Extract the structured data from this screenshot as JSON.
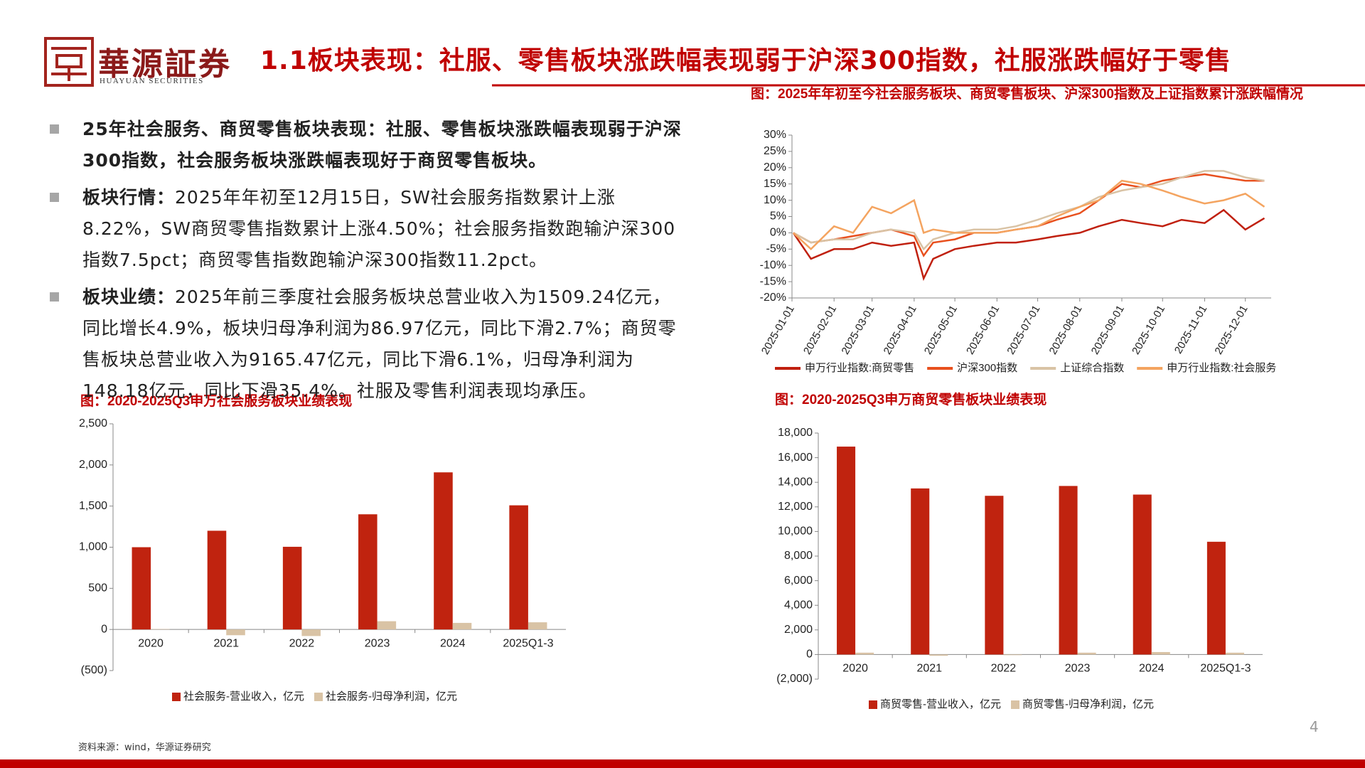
{
  "header": {
    "logo": "華源証券",
    "logo_en": "HUAYUAN SECURITIES",
    "title": "1.1板块表现：社服、零售板块涨跌幅表现弱于沪深300指数，社服涨跌幅好于零售"
  },
  "bullets": [
    {
      "lead": "25年社会服务、商贸零售板块表现：社服、零售板块涨跌幅表现弱于沪深300指数，社会服务板块涨跌幅表现好于商贸零售板块。"
    },
    {
      "lead": "板块行情：",
      "text": "2025年年初至12月15日，SW社会服务指数累计上涨8.22%，SW商贸零售指数累计上涨4.50%；社会服务指数跑输沪深300指数7.5pct；商贸零售指数跑输沪深300指数11.2pct。"
    },
    {
      "lead": "板块业绩：",
      "text": "2025年前三季度社会服务板块总营业收入为1509.24亿元，同比增长4.9%，板块归母净利润为86.97亿元，同比下滑2.7%；商贸零售板块总营业收入为9165.47亿元，同比下滑6.1%，归母净利润为148.18亿元，同比下滑35.4%。社服及零售利润表现均承压。"
    }
  ],
  "source": "资料来源：wind，华源证券研究",
  "page_number": "4",
  "chart_data": [
    {
      "type": "line",
      "title": "图：2025年年初至今社会服务板块、商贸零售板块、沪深300指数及上证指数累计涨跌幅情况",
      "x": [
        "2025-01-02",
        "2025-01-15",
        "2025-02-01",
        "2025-02-15",
        "2025-03-01",
        "2025-03-15",
        "2025-04-01",
        "2025-04-08",
        "2025-04-15",
        "2025-05-01",
        "2025-05-15",
        "2025-06-01",
        "2025-06-15",
        "2025-07-01",
        "2025-07-15",
        "2025-08-01",
        "2025-08-15",
        "2025-09-01",
        "2025-09-15",
        "2025-10-01",
        "2025-10-15",
        "2025-11-01",
        "2025-11-15",
        "2025-12-01",
        "2025-12-15"
      ],
      "series": [
        {
          "name": "申万行业指数:商贸零售",
          "color": "#c0200f",
          "values": [
            0,
            -8,
            -5,
            -5,
            -3,
            -4,
            -3,
            -14,
            -8,
            -5,
            -4,
            -3,
            -3,
            -2,
            -1,
            0,
            2,
            4,
            3,
            2,
            4,
            3,
            7,
            1,
            4.5
          ]
        },
        {
          "name": "沪深300指数",
          "color": "#e8501e",
          "values": [
            0,
            -3,
            -2,
            -1,
            0,
            1,
            -1,
            -7,
            -3,
            -2,
            0,
            0,
            1,
            2,
            4,
            6,
            10,
            15,
            14,
            16,
            17,
            18,
            17,
            16,
            16
          ]
        },
        {
          "name": "上证综合指数",
          "color": "#d9c3a5",
          "values": [
            0,
            -3,
            -2,
            -2,
            0,
            1,
            0,
            -5,
            -2,
            0,
            1,
            1,
            2,
            4,
            6,
            8,
            11,
            13,
            14,
            15,
            17,
            19,
            19,
            17,
            16
          ]
        },
        {
          "name": "申万行业指数:社会服务",
          "color": "#f4a460",
          "values": [
            0,
            -5,
            2,
            0,
            8,
            6,
            10,
            0,
            1,
            0,
            0,
            0,
            1,
            2,
            5,
            8,
            10,
            16,
            15,
            13,
            11,
            9,
            10,
            12,
            8
          ]
        }
      ],
      "xlim": [
        "2025-01-01",
        "2025-12-20"
      ],
      "xticks": [
        "2025-01-01",
        "2025-02-01",
        "2025-03-01",
        "2025-04-01",
        "2025-05-01",
        "2025-06-01",
        "2025-07-01",
        "2025-08-01",
        "2025-09-01",
        "2025-10-01",
        "2025-11-01",
        "2025-12-01"
      ],
      "ylim": [
        -20,
        30
      ],
      "yticks": [
        {
          "value": -20,
          "label": "-20%"
        },
        {
          "value": -15,
          "label": "-15%"
        },
        {
          "value": -10,
          "label": "-10%"
        },
        {
          "value": -5,
          "label": "-5%"
        },
        {
          "value": 0,
          "label": "0%"
        },
        {
          "value": 5,
          "label": "5%"
        },
        {
          "value": 10,
          "label": "10%"
        },
        {
          "value": 15,
          "label": "15%"
        },
        {
          "value": 20,
          "label": "20%"
        },
        {
          "value": 25,
          "label": "25%"
        },
        {
          "value": 30,
          "label": "30%"
        }
      ],
      "legend": "bottom"
    },
    {
      "type": "bar",
      "title": "图：2020-2025Q3申万社会服务板块业绩表现",
      "categories": [
        "2020",
        "2021",
        "2022",
        "2023",
        "2024",
        "2025Q1-3"
      ],
      "series": [
        {
          "name": "社会服务-营业收入，亿元",
          "color": "#c0230f",
          "values": [
            1000,
            1200,
            1005,
            1400,
            1910,
            1509.24
          ]
        },
        {
          "name": "社会服务-归母净利润，亿元",
          "color": "#d9c3a5",
          "values": [
            5,
            -70,
            -80,
            100,
            80,
            86.97
          ]
        }
      ],
      "ylim": [
        -500,
        2500
      ],
      "yticks": [
        {
          "value": -500,
          "label": "(500)"
        },
        0,
        500,
        {
          "value": 1000,
          "label": "1,000"
        },
        {
          "value": 1500,
          "label": "1,500"
        },
        {
          "value": 2000,
          "label": "2,000"
        },
        {
          "value": 2500,
          "label": "2,500"
        }
      ],
      "legend": "bottom"
    },
    {
      "type": "bar",
      "title": "图：2020-2025Q3申万商贸零售板块业绩表现",
      "categories": [
        "2020",
        "2021",
        "2022",
        "2023",
        "2024",
        "2025Q1-3"
      ],
      "series": [
        {
          "name": "商贸零售-营业收入，亿元",
          "color": "#c0230f",
          "values": [
            16900,
            13500,
            12900,
            13700,
            13000,
            9165.47
          ]
        },
        {
          "name": "商贸零售-归母净利润，亿元",
          "color": "#d9c3a5",
          "values": [
            150,
            -100,
            -50,
            150,
            200,
            148.18
          ]
        }
      ],
      "ylim": [
        -2000,
        18000
      ],
      "yticks": [
        {
          "value": -2000,
          "label": "(2,000)"
        },
        0,
        {
          "value": 2000,
          "label": "2,000"
        },
        {
          "value": 4000,
          "label": "4,000"
        },
        {
          "value": 6000,
          "label": "6,000"
        },
        {
          "value": 8000,
          "label": "8,000"
        },
        {
          "value": 10000,
          "label": "10,000"
        },
        {
          "value": 12000,
          "label": "12,000"
        },
        {
          "value": 14000,
          "label": "14,000"
        },
        {
          "value": 16000,
          "label": "16,000"
        },
        {
          "value": 18000,
          "label": "18,000"
        }
      ],
      "legend": "bottom"
    }
  ]
}
